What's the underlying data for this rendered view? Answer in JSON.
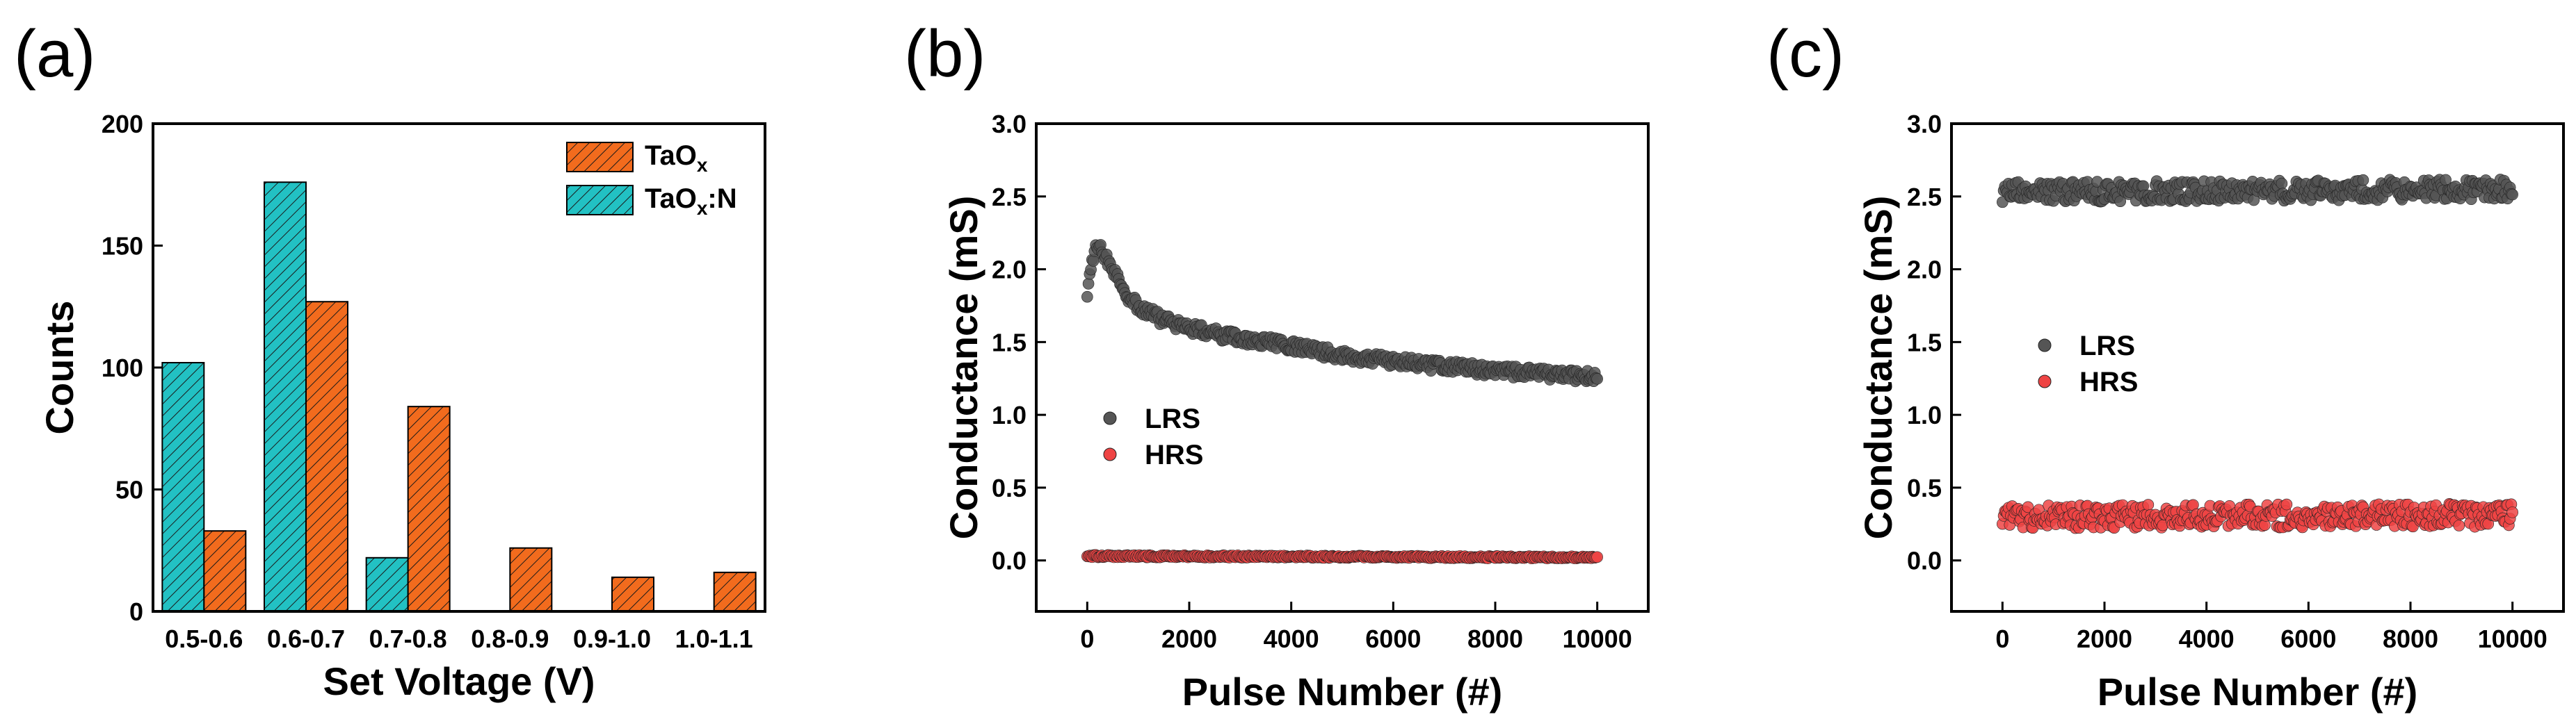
{
  "colors": {
    "taox": "#f26b1d",
    "taoxn": "#22c1c3",
    "lrs": "#555555",
    "hrs": "#ee4444",
    "axis": "#000000"
  },
  "chart_data": [
    {
      "panel": "(a)",
      "type": "bar",
      "xlabel": "Set Voltage (V)",
      "ylabel": "Counts",
      "ylim": [
        0,
        200
      ],
      "yticks": [
        0,
        50,
        100,
        150,
        200
      ],
      "categories": [
        "0.5-0.6",
        "0.6-0.7",
        "0.7-0.8",
        "0.8-0.9",
        "0.9-1.0",
        "1.0-1.1"
      ],
      "series": [
        {
          "name": "TaOx:N",
          "legend_main": "TaO",
          "legend_sub": "x",
          "legend_suffix": ":N",
          "color_key": "taoxn",
          "values": [
            102,
            176,
            22,
            0,
            0,
            0
          ]
        },
        {
          "name": "TaOx",
          "legend_main": "TaO",
          "legend_sub": "x",
          "legend_suffix": "",
          "color_key": "taox",
          "values": [
            33,
            127,
            84,
            26,
            14,
            16
          ]
        }
      ],
      "legend_order": [
        1,
        0
      ],
      "legend_position": "top-right"
    },
    {
      "panel": "(b)",
      "type": "scatter",
      "xlabel": "Pulse Number (#)",
      "ylabel": "Conductance (mS)",
      "xlim": [
        -1000,
        11000
      ],
      "ylim": [
        -0.35,
        3.0
      ],
      "xticks": [
        0,
        2000,
        4000,
        6000,
        8000,
        10000
      ],
      "yticks": [
        0.0,
        0.5,
        1.0,
        1.5,
        2.0,
        2.5,
        3.0
      ],
      "series": [
        {
          "name": "LRS",
          "color_key": "lrs",
          "x": [
            0,
            100,
            200,
            300,
            500,
            800,
            1000,
            1500,
            2000,
            2500,
            3000,
            3500,
            4000,
            4500,
            5000,
            5500,
            6000,
            6500,
            7000,
            7500,
            8000,
            8500,
            9000,
            9500,
            10000
          ],
          "y": [
            1.85,
            2.08,
            2.15,
            2.12,
            2.0,
            1.82,
            1.74,
            1.65,
            1.6,
            1.56,
            1.52,
            1.5,
            1.47,
            1.44,
            1.41,
            1.39,
            1.37,
            1.35,
            1.33,
            1.32,
            1.3,
            1.29,
            1.28,
            1.27,
            1.26
          ],
          "spread": 0.04
        },
        {
          "name": "HRS",
          "color_key": "hrs",
          "x": [
            0,
            10000
          ],
          "y": [
            0.03,
            0.02
          ],
          "spread": 0.008
        }
      ],
      "legend_position": "center-left"
    },
    {
      "panel": "(c)",
      "type": "scatter",
      "xlabel": "Pulse Number (#)",
      "ylabel": "Conductance (mS)",
      "xlim": [
        -1000,
        11000
      ],
      "ylim": [
        -0.35,
        3.0
      ],
      "xticks": [
        0,
        2000,
        4000,
        6000,
        8000,
        10000
      ],
      "yticks": [
        0.0,
        0.5,
        1.0,
        1.5,
        2.0,
        2.5,
        3.0
      ],
      "series": [
        {
          "name": "LRS",
          "color_key": "lrs",
          "x": [
            0,
            10000
          ],
          "y": [
            2.53,
            2.55
          ],
          "spread": 0.07
        },
        {
          "name": "HRS",
          "color_key": "hrs",
          "x": [
            0,
            10000
          ],
          "y": [
            0.3,
            0.31
          ],
          "spread": 0.08
        }
      ],
      "legend_position": "center-left"
    }
  ]
}
